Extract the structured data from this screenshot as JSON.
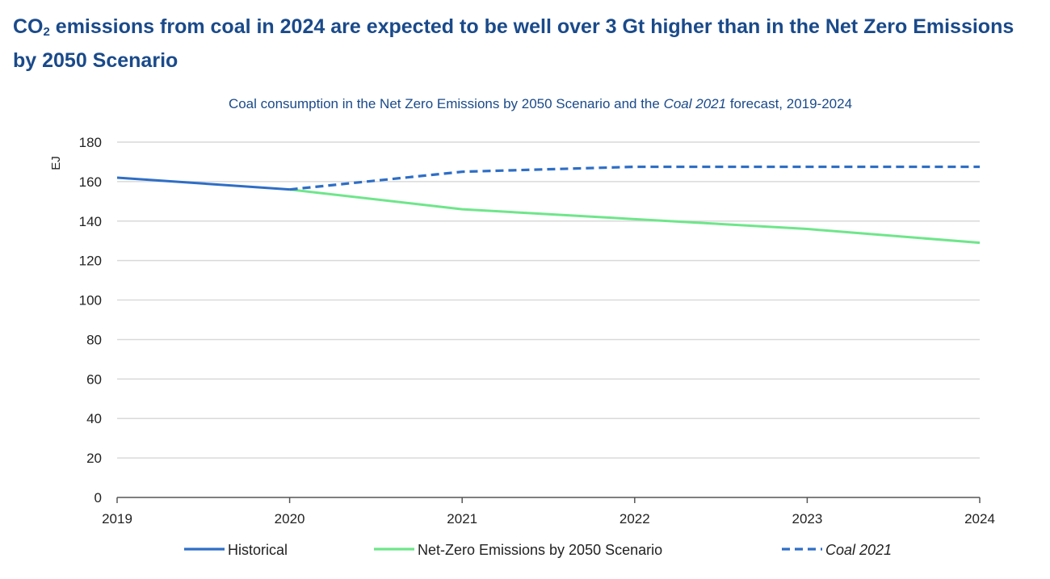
{
  "headline": {
    "part1": "CO",
    "sub": "2",
    "part2": " emissions from coal in 2024 are expected to be well over 3 Gt higher than in the Net Zero Emissions by 2050 Scenario"
  },
  "colors": {
    "headline": "#1a4a8a",
    "historical": "#2e6ec6",
    "net_zero": "#6ee68a",
    "coal2021": "#2e6ec6",
    "grid": "#d9d9d9"
  },
  "chart_data": {
    "type": "line",
    "title_parts": [
      "Coal consumption in the Net Zero Emissions by 2050 Scenario and the ",
      "Coal 2021",
      " forecast, 2019-2024"
    ],
    "ylabel": "EJ",
    "xlabel": "",
    "x": [
      "2019",
      "2020",
      "2021",
      "2022",
      "2023",
      "2024"
    ],
    "ylim": [
      0,
      180
    ],
    "yticks": [
      0,
      20,
      40,
      60,
      80,
      100,
      120,
      140,
      160,
      180
    ],
    "grid": "horizontal",
    "legend_position": "bottom",
    "series": [
      {
        "name": "Historical",
        "style": "solid",
        "x": [
          "2019",
          "2020"
        ],
        "values": [
          162,
          156
        ]
      },
      {
        "name": "Net-Zero Emissions by 2050 Scenario",
        "style": "solid",
        "x": [
          "2020",
          "2021",
          "2022",
          "2023",
          "2024"
        ],
        "values": [
          156,
          146,
          141,
          136,
          129
        ]
      },
      {
        "name": "Coal 2021",
        "style": "dashed",
        "italic": true,
        "x": [
          "2020",
          "2021",
          "2022",
          "2023",
          "2024"
        ],
        "values": [
          156,
          165,
          167.5,
          167.5,
          167.5
        ]
      }
    ]
  }
}
